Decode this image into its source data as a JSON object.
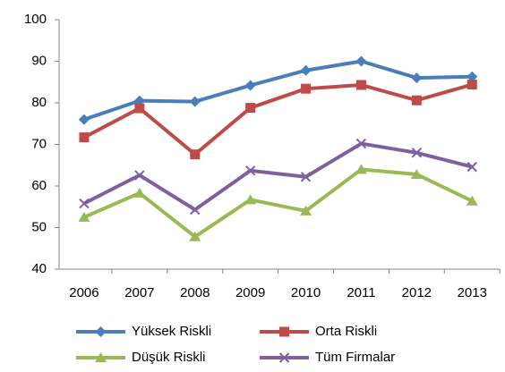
{
  "chart_data": {
    "type": "line",
    "categories": [
      "2006",
      "2007",
      "2008",
      "2009",
      "2010",
      "2011",
      "2012",
      "2013"
    ],
    "series": [
      {
        "name": "Yüksek Riskli",
        "color": "#4a7ebb",
        "marker": "diamond",
        "values": [
          76,
          80.5,
          80.3,
          84.2,
          87.8,
          90,
          86,
          86.3
        ]
      },
      {
        "name": "Orta Riskli",
        "color": "#be4b48",
        "marker": "square",
        "values": [
          71.7,
          78.7,
          67.6,
          78.8,
          83.4,
          84.3,
          80.6,
          84.4
        ]
      },
      {
        "name": "Düşük Riskli",
        "color": "#98b954",
        "marker": "triangle",
        "values": [
          52.5,
          58.3,
          47.8,
          56.7,
          54,
          64,
          62.8,
          56.4
        ]
      },
      {
        "name": "Tüm Firmalar",
        "color": "#7d60a0",
        "marker": "x",
        "values": [
          55.8,
          62.6,
          54.3,
          63.7,
          62.2,
          70.2,
          68,
          64.6
        ]
      }
    ],
    "ylim": [
      40,
      100
    ],
    "yticks": [
      40,
      50,
      60,
      70,
      80,
      90,
      100
    ],
    "grid": false,
    "legend": "bottom"
  }
}
